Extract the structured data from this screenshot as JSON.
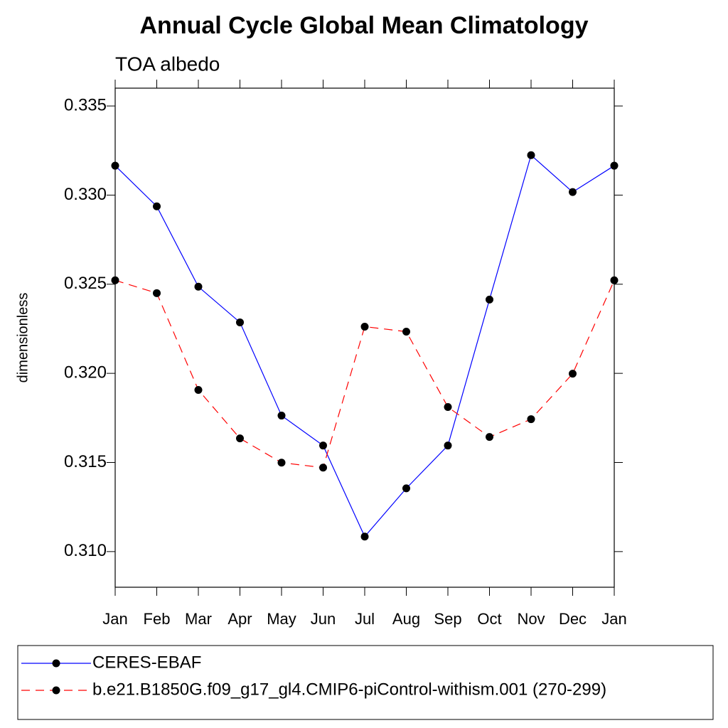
{
  "chart_data": {
    "type": "line",
    "title": "Annual Cycle Global Mean Climatology",
    "subtitle": "TOA albedo",
    "y_label": "dimensionless",
    "categories": [
      "Jan",
      "Feb",
      "Mar",
      "Apr",
      "May",
      "Jun",
      "Jul",
      "Aug",
      "Sep",
      "Oct",
      "Nov",
      "Dec",
      "Jan"
    ],
    "series": [
      {
        "name": "CERES-EBAF",
        "color": "#0000ff",
        "dash": "solid",
        "values": [
          0.33165,
          0.32937,
          0.32486,
          0.32286,
          0.31763,
          0.31595,
          0.31084,
          0.31355,
          0.31595,
          0.32414,
          0.33224,
          0.33017,
          0.33165
        ]
      },
      {
        "name": "b.e21.B1850G.f09_g17_gl4.CMIP6-piControl-withism.001 (270-299)",
        "color": "#ff0000",
        "dash": "dashed",
        "values": [
          0.32522,
          0.3245,
          0.31907,
          0.31635,
          0.31499,
          0.31471,
          0.32262,
          0.32234,
          0.31811,
          0.31643,
          0.31743,
          0.31998,
          0.32522
        ]
      }
    ],
    "ylim": [
      0.308,
      0.336
    ],
    "yticks": [
      {
        "value": 0.31,
        "label": "0.310"
      },
      0.315,
      {
        "value": 0.32,
        "label": "0.320"
      },
      0.325,
      {
        "value": 0.33,
        "label": "0.330"
      },
      0.335
    ],
    "grid": false,
    "legend": "bottom"
  }
}
